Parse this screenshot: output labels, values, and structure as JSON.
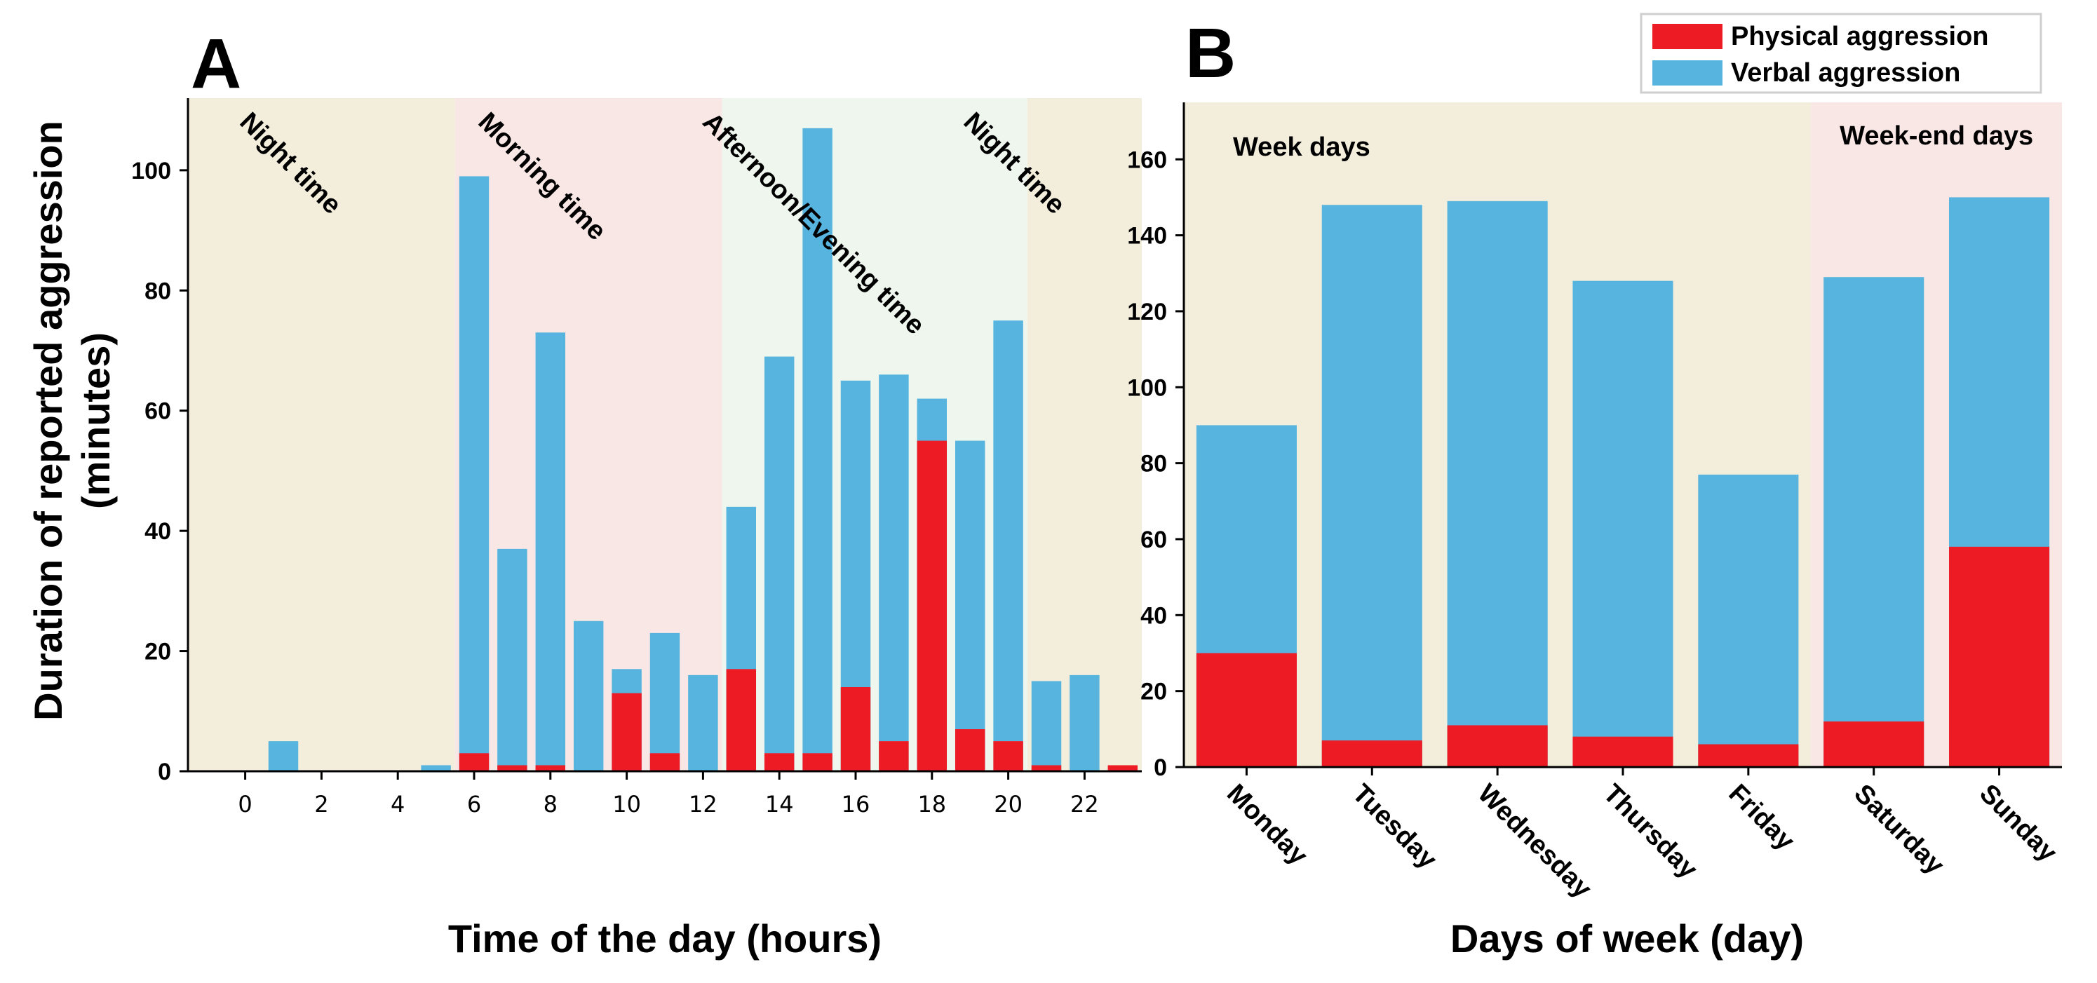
{
  "legend": {
    "physical": "Physical aggression",
    "verbal": "Verbal aggression"
  },
  "colors": {
    "physical": "#ed1c24",
    "verbal": "#56b4de",
    "night": "#f3eedc",
    "morning": "#f8e7e5",
    "afternoon": "#eef6ee",
    "weekend": "#f8e7e5"
  },
  "chart_data": [
    {
      "type": "bar",
      "panel": "A",
      "title": "",
      "xlabel": "Time of the day (hours)",
      "ylabel": "Duration of reported aggression",
      "ylabel_unit": "(minutes)",
      "ylim": [
        0,
        112
      ],
      "yticks": [
        0,
        20,
        40,
        60,
        80,
        100
      ],
      "xticks": [
        0,
        2,
        4,
        6,
        8,
        10,
        12,
        14,
        16,
        18,
        20,
        22
      ],
      "xlim": [
        -1.5,
        23.5
      ],
      "hours": [
        0,
        1,
        2,
        3,
        4,
        5,
        6,
        7,
        8,
        9,
        10,
        11,
        12,
        13,
        14,
        15,
        16,
        17,
        18,
        19,
        20,
        21,
        22,
        23
      ],
      "series": [
        {
          "name": "Verbal aggression",
          "values": [
            0,
            5,
            0,
            0,
            0,
            1,
            99,
            37,
            73,
            25,
            17,
            23,
            16,
            44,
            69,
            107,
            65,
            66,
            62,
            55,
            75,
            15,
            16,
            0
          ]
        },
        {
          "name": "Physical aggression",
          "values": [
            0,
            0,
            0,
            0,
            0,
            0,
            3,
            1,
            1,
            0,
            13,
            3,
            0,
            17,
            3,
            3,
            14,
            5,
            55,
            7,
            5,
            1,
            0,
            1
          ]
        }
      ],
      "periods": [
        {
          "label": "Night time",
          "from": -1.5,
          "to": 5.5,
          "color_key": "night"
        },
        {
          "label": "Morning time",
          "from": 5.5,
          "to": 12.5,
          "color_key": "morning"
        },
        {
          "label": "Afternoon/Evening time",
          "from": 12.5,
          "to": 20.5,
          "color_key": "afternoon"
        },
        {
          "label": "Night time",
          "from": 20.5,
          "to": 23.5,
          "color_key": "night"
        }
      ]
    },
    {
      "type": "bar",
      "panel": "B",
      "title": "",
      "xlabel": "Days of week (day)",
      "ylabel": "",
      "ylim": [
        0,
        175
      ],
      "yticks": [
        0,
        20,
        40,
        60,
        80,
        100,
        120,
        140,
        160
      ],
      "categories": [
        "Monday",
        "Tuesday",
        "Wednesday",
        "Thursday",
        "Friday",
        "Saturday",
        "Sunday"
      ],
      "series": [
        {
          "name": "Verbal aggression",
          "values": [
            90,
            148,
            149,
            128,
            77,
            129,
            150
          ]
        },
        {
          "name": "Physical aggression",
          "values": [
            30,
            7,
            11,
            8,
            6,
            12,
            58
          ]
        }
      ],
      "periods": [
        {
          "label": "Week days",
          "from_index": 0,
          "to_index": 4,
          "color_key": "night"
        },
        {
          "label": "Week-end days",
          "from_index": 5,
          "to_index": 6,
          "color_key": "weekend"
        }
      ]
    }
  ]
}
